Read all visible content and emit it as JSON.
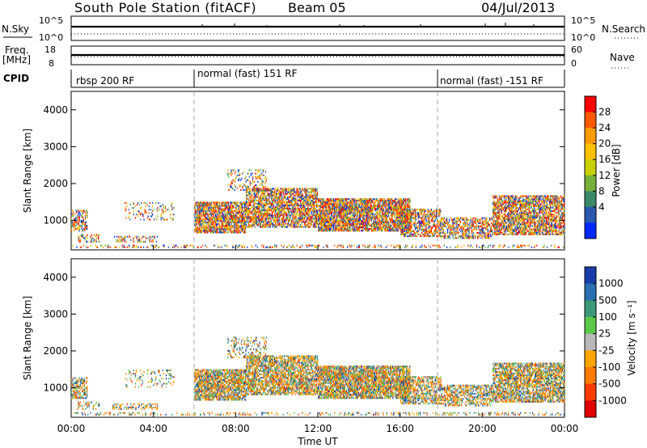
{
  "header": {
    "station": "South Pole Station (fitACF)",
    "beam": "Beam 05",
    "date": "04/Jul/2013"
  },
  "strip_panels": {
    "nsky": {
      "label": "N.Sky",
      "ticks": [
        "10^5",
        "10^0"
      ]
    },
    "nsearch": {
      "label": "N.Search",
      "ticks": [
        "10^5",
        "10^0"
      ]
    },
    "freq": {
      "label": "Freq.",
      "unit": "[MHz]",
      "ticks": [
        "18",
        "8"
      ]
    },
    "nave": {
      "label": "Nave",
      "ticks": [
        "60",
        "0"
      ]
    },
    "cpid": {
      "label": "CPID"
    }
  },
  "cpid_segments": [
    {
      "label": "rbsp 200 RF",
      "start": "00:00",
      "end": "06:00"
    },
    {
      "label": "normal (fast) 151 RF",
      "start": "06:00",
      "end": "18:00"
    },
    {
      "label": "normal (fast) -151 RF",
      "start": "18:00",
      "end": "00:00"
    }
  ],
  "chart_data": [
    {
      "type": "heatmap",
      "name": "power",
      "ylabel": "Slant Range [km]",
      "yticks": [
        "4000",
        "3000",
        "2000",
        "1000"
      ],
      "ylim": [
        200,
        4500
      ],
      "xlim_hours": [
        0,
        24
      ],
      "colorbar_label": "Power [dB]",
      "colorbar_ticks": [
        "28",
        "24",
        "20",
        "16",
        "12",
        "8",
        "4"
      ],
      "colorbar_colors": [
        "#ff0000",
        "#ff5a00",
        "#ff9a00",
        "#ffc000",
        "#c8d000",
        "#78b038",
        "#3a8a6a",
        "#2a58b0",
        "#0028ff"
      ],
      "mode_change_hours": [
        6,
        18
      ]
    },
    {
      "type": "heatmap",
      "name": "velocity",
      "ylabel": "Slant Range [km]",
      "yticks": [
        "4000",
        "3000",
        "2000",
        "1000"
      ],
      "ylim": [
        200,
        4500
      ],
      "xlim_hours": [
        0,
        24
      ],
      "colorbar_label": "Velocity [m s⁻¹]",
      "colorbar_ticks": [
        "1000",
        "500",
        "100",
        "25",
        "-25",
        "-100",
        "-500",
        "-1000"
      ],
      "colorbar_colors": [
        "#1a3caa",
        "#2a70b0",
        "#3c9a78",
        "#5cc84a",
        "#b8b8b8",
        "#ffa500",
        "#ff7a00",
        "#ff3c00",
        "#e00000"
      ],
      "mode_change_hours": [
        6,
        18
      ]
    }
  ],
  "x_axis": {
    "ticks": [
      "00:00",
      "04:00",
      "08:00",
      "12:00",
      "16:00",
      "20:00",
      "00:00"
    ],
    "label": "Time UT"
  }
}
